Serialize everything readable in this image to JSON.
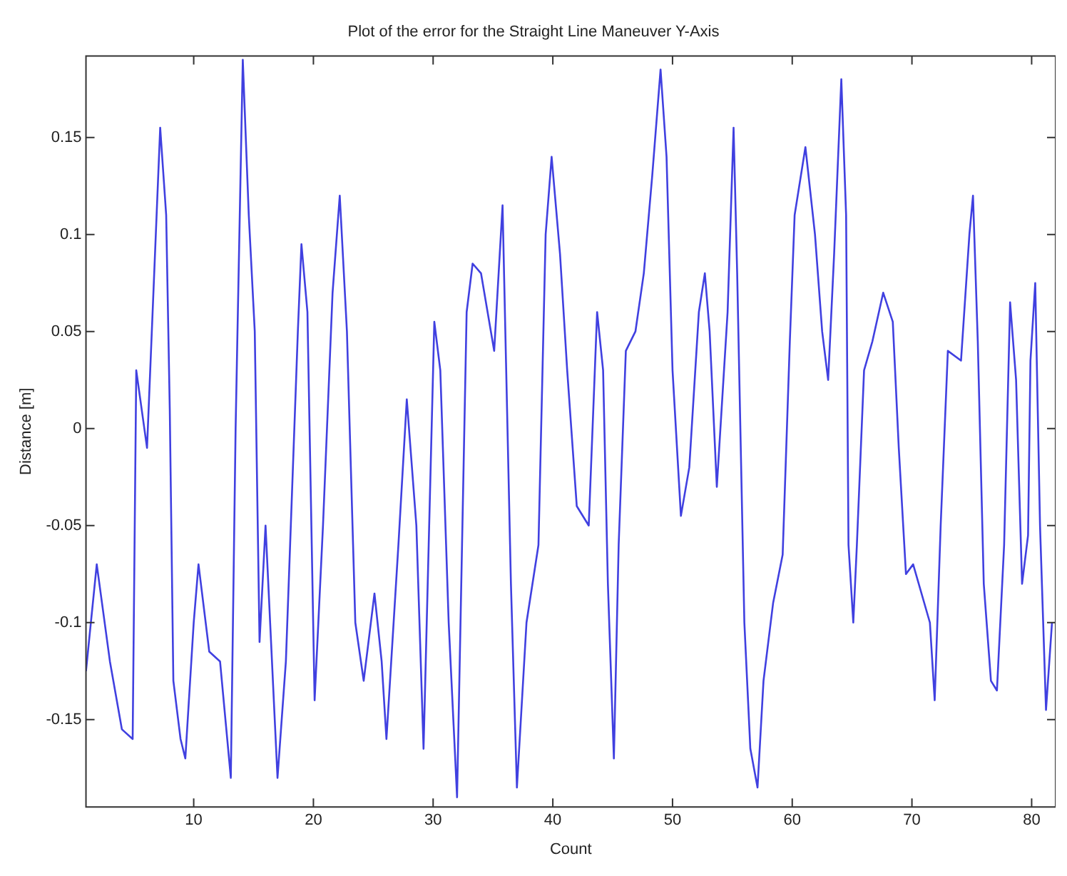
{
  "chart_data": {
    "type": "line",
    "title": "Plot of the error for the Straight Line Maneuver Y-Axis",
    "xlabel": "Count",
    "ylabel": "Distance [m]",
    "series": [
      {
        "color": "#4040e0",
        "x": [
          1.0,
          1.9,
          3.0,
          4.0,
          4.9,
          5.2,
          6.1,
          6.9,
          7.2,
          7.7,
          8.0,
          8.3,
          8.9,
          9.3,
          10.0,
          10.4,
          11.3,
          12.2,
          13.1,
          13.5,
          14.1,
          14.6,
          15.1,
          15.5,
          16.0,
          17.0,
          17.7,
          18.7,
          19.0,
          19.5,
          20.1,
          20.8,
          21.6,
          22.2,
          22.8,
          23.5,
          24.2,
          25.1,
          25.7,
          26.1,
          27.1,
          27.8,
          28.6,
          29.2,
          30.1,
          30.6,
          31.3,
          32.0,
          32.8,
          33.3,
          34.0,
          35.1,
          35.8,
          36.5,
          37.0,
          37.8,
          38.8,
          39.4,
          39.9,
          40.6,
          41.2,
          42.0,
          43.0,
          43.7,
          44.2,
          44.6,
          45.1,
          45.5,
          46.1,
          46.9,
          47.6,
          48.3,
          49.0,
          49.5,
          50.0,
          50.7,
          51.4,
          52.2,
          52.7,
          53.1,
          53.7,
          54.6,
          55.1,
          55.4,
          56.0,
          56.5,
          57.1,
          57.6,
          58.4,
          59.2,
          59.8,
          60.2,
          61.1,
          61.9,
          62.5,
          63.0,
          63.5,
          64.1,
          64.5,
          64.7,
          65.1,
          65.4,
          66.0,
          66.7,
          67.6,
          68.4,
          68.9,
          69.5,
          70.1,
          71.5,
          71.9,
          72.4,
          73.0,
          74.1,
          74.8,
          75.1,
          75.5,
          76.0,
          76.6,
          77.1,
          77.7,
          78.2,
          78.7,
          79.2,
          79.7,
          79.9,
          80.3,
          80.7,
          81.2,
          81.7
        ],
        "values": [
          -0.125,
          -0.07,
          -0.12,
          -0.155,
          -0.16,
          0.03,
          -0.01,
          0.11,
          0.155,
          0.11,
          0.01,
          -0.13,
          -0.16,
          -0.17,
          -0.1,
          -0.07,
          -0.115,
          -0.12,
          -0.18,
          0,
          0.19,
          0.11,
          0.05,
          -0.11,
          -0.05,
          -0.18,
          -0.12,
          0.05,
          0.095,
          0.06,
          -0.14,
          -0.05,
          0.07,
          0.12,
          0.05,
          -0.1,
          -0.13,
          -0.085,
          -0.12,
          -0.16,
          -0.06,
          0.015,
          -0.05,
          -0.165,
          0.055,
          0.03,
          -0.1,
          -0.19,
          0.06,
          0.085,
          0.08,
          0.04,
          0.115,
          -0.08,
          -0.185,
          -0.1,
          -0.06,
          0.1,
          0.14,
          0.09,
          0.03,
          -0.04,
          -0.05,
          0.06,
          0.03,
          -0.08,
          -0.17,
          -0.06,
          0.04,
          0.05,
          0.08,
          0.13,
          0.185,
          0.14,
          0.03,
          -0.045,
          -0.02,
          0.06,
          0.08,
          0.05,
          -0.03,
          0.06,
          0.155,
          0.08,
          -0.1,
          -0.165,
          -0.185,
          -0.13,
          -0.09,
          -0.065,
          0.045,
          0.11,
          0.145,
          0.1,
          0.05,
          0.025,
          0.09,
          0.18,
          0.11,
          -0.06,
          -0.1,
          -0.06,
          0.03,
          0.045,
          0.07,
          0.055,
          -0.01,
          -0.075,
          -0.07,
          -0.1,
          -0.14,
          -0.05,
          0.04,
          0.035,
          0.1,
          0.12,
          0.045,
          -0.08,
          -0.13,
          -0.135,
          -0.06,
          0.065,
          0.025,
          -0.08,
          -0.055,
          0.035,
          0.075,
          -0.05,
          -0.145,
          -0.1
        ]
      }
    ],
    "xlim": [
      1,
      82
    ],
    "xticks": [
      10,
      20,
      30,
      40,
      50,
      60,
      70,
      80
    ],
    "ylim": [
      -0.195,
      0.192
    ],
    "yticks": [
      -0.15,
      -0.1,
      -0.05,
      0,
      0.05,
      0.1,
      0.15
    ],
    "grid": false,
    "legend": false,
    "marker": "none",
    "line_style": "solid"
  }
}
